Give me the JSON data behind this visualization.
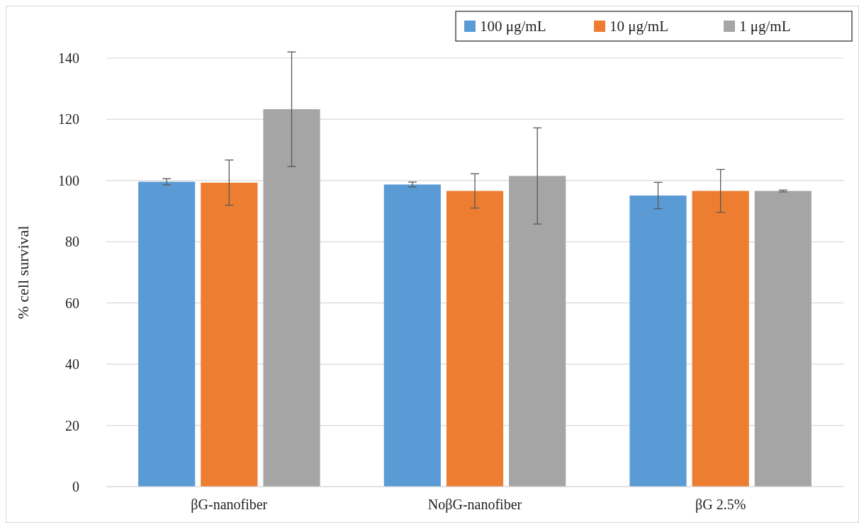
{
  "chart_data": {
    "type": "bar",
    "ylabel": "% cell survival",
    "categories": [
      "βG-nanofiber",
      "NoβG-nanofiber",
      "βG 2.5%"
    ],
    "series": [
      {
        "name": "100 μg/mL",
        "color": "#5b9bd5",
        "values": [
          99.6,
          98.7,
          95.1
        ],
        "errors": [
          1,
          0.8,
          4.3
        ]
      },
      {
        "name": "10 μg/mL",
        "color": "#ed7d31",
        "values": [
          99.3,
          96.6,
          96.6
        ],
        "errors": [
          7.4,
          5.6,
          7
        ]
      },
      {
        "name": "1 μg/mL",
        "color": "#a5a5a5",
        "values": [
          123.3,
          101.5,
          96.6
        ],
        "errors": [
          18.7,
          15.7,
          0.3
        ]
      }
    ],
    "ylim": [
      0,
      140
    ],
    "yticks": [
      0,
      20,
      40,
      60,
      80,
      100,
      120,
      140
    ],
    "grid": "y",
    "legend": "top right"
  }
}
